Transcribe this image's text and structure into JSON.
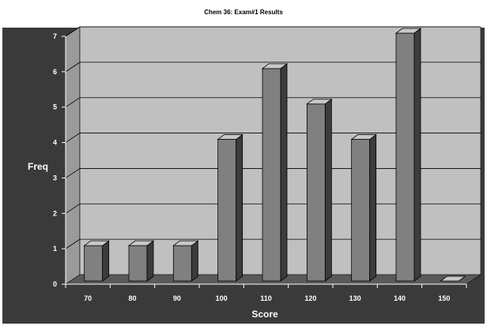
{
  "chart_data": {
    "type": "bar",
    "title": "Chem 36: Exam#1 Results",
    "xlabel": "Score",
    "ylabel": "Freq",
    "categories": [
      "70",
      "80",
      "90",
      "100",
      "110",
      "120",
      "130",
      "140",
      "150"
    ],
    "values": [
      1,
      1,
      1,
      4,
      6,
      5,
      4,
      7,
      0
    ],
    "yticks": [
      "0",
      "1",
      "2",
      "3",
      "4",
      "5",
      "6",
      "7"
    ],
    "ylim": [
      0,
      7
    ],
    "grid": true,
    "legend": "none",
    "style": "3d-column",
    "colors": {
      "chart_area": "#3a3a3a",
      "back_wall": "#c0c0c0",
      "side_wall": "#9a9a9a",
      "floor": "#5a5a5a",
      "bar_front": "#808080",
      "bar_top": "#c8c8c8",
      "bar_side": "#3c3c3c",
      "text_light": "#ffffff",
      "title_text": "#000000"
    }
  }
}
